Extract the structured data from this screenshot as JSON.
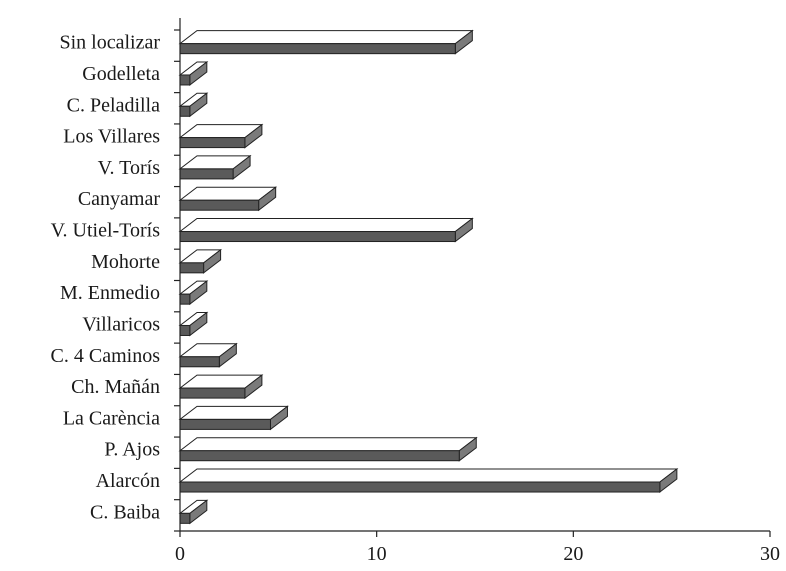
{
  "chart_data": {
    "type": "bar",
    "orientation": "horizontal",
    "categories": [
      "Sin localizar",
      "Godelleta",
      "C. Peladilla",
      "Los Villares",
      "V. Torís",
      "Canyamar",
      "V. Utiel-Torís",
      "Mohorte",
      "M. Enmedio",
      "Villaricos",
      "C. 4 Caminos",
      "Ch. Mañán",
      "La Carència",
      "P. Ajos",
      "Alarcón",
      "C. Baiba"
    ],
    "values": [
      14,
      0.5,
      0.5,
      3.3,
      2.7,
      4,
      14,
      1.2,
      0.5,
      0.5,
      2,
      3.3,
      4.6,
      14.2,
      24.4,
      0.5
    ],
    "xlim": [
      0,
      30
    ],
    "xticks": [
      "0",
      "10",
      "20",
      "30"
    ],
    "grid": false,
    "style": "3d"
  }
}
